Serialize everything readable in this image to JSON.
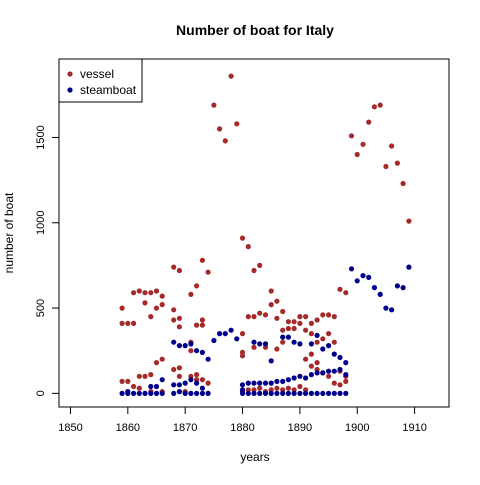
{
  "chart_data": {
    "type": "scatter",
    "title": "Number of boat for Italy",
    "xlabel": "years",
    "ylabel": "number of boat",
    "xlim": [
      1848,
      1916
    ],
    "ylim": [
      -80,
      1960
    ],
    "x_ticks": [
      "1850",
      "1860",
      "1870",
      "1880",
      "1890",
      "1900",
      "1910"
    ],
    "y_ticks": [
      "0",
      "500",
      "1000",
      "1500"
    ],
    "grid": false,
    "legend_position": "top-left",
    "series": [
      {
        "name": "vessel",
        "color": "#A52A2A",
        "points": [
          [
            1859,
            500
          ],
          [
            1859,
            410
          ],
          [
            1860,
            410
          ],
          [
            1861,
            410
          ],
          [
            1861,
            590
          ],
          [
            1862,
            600
          ],
          [
            1863,
            590
          ],
          [
            1863,
            530
          ],
          [
            1864,
            590
          ],
          [
            1864,
            450
          ],
          [
            1865,
            600
          ],
          [
            1865,
            500
          ],
          [
            1866,
            570
          ],
          [
            1866,
            520
          ],
          [
            1868,
            740
          ],
          [
            1868,
            490
          ],
          [
            1868,
            430
          ],
          [
            1869,
            720
          ],
          [
            1869,
            390
          ],
          [
            1869,
            440
          ],
          [
            1871,
            580
          ],
          [
            1871,
            300
          ],
          [
            1871,
            250
          ],
          [
            1872,
            630
          ],
          [
            1872,
            400
          ],
          [
            1873,
            780
          ],
          [
            1873,
            430
          ],
          [
            1873,
            400
          ],
          [
            1874,
            710
          ],
          [
            1875,
            1690
          ],
          [
            1876,
            1550
          ],
          [
            1877,
            1480
          ],
          [
            1878,
            1860
          ],
          [
            1879,
            1580
          ],
          [
            1880,
            910
          ],
          [
            1880,
            350
          ],
          [
            1880,
            240
          ],
          [
            1880,
            220
          ],
          [
            1881,
            860
          ],
          [
            1881,
            450
          ],
          [
            1882,
            720
          ],
          [
            1882,
            450
          ],
          [
            1882,
            270
          ],
          [
            1883,
            750
          ],
          [
            1883,
            470
          ],
          [
            1884,
            460
          ],
          [
            1884,
            270
          ],
          [
            1885,
            600
          ],
          [
            1885,
            520
          ],
          [
            1886,
            540
          ],
          [
            1886,
            440
          ],
          [
            1886,
            260
          ],
          [
            1887,
            480
          ],
          [
            1887,
            370
          ],
          [
            1887,
            300
          ],
          [
            1888,
            420
          ],
          [
            1888,
            380
          ],
          [
            1889,
            420
          ],
          [
            1889,
            380
          ],
          [
            1890,
            450
          ],
          [
            1890,
            410
          ],
          [
            1891,
            450
          ],
          [
            1891,
            370
          ],
          [
            1892,
            410
          ],
          [
            1892,
            350
          ],
          [
            1893,
            430
          ],
          [
            1893,
            300
          ],
          [
            1894,
            460
          ],
          [
            1894,
            320
          ],
          [
            1895,
            460
          ],
          [
            1895,
            350
          ],
          [
            1896,
            450
          ],
          [
            1896,
            300
          ],
          [
            1897,
            610
          ],
          [
            1898,
            590
          ],
          [
            1899,
            1510
          ],
          [
            1900,
            1400
          ],
          [
            1901,
            1460
          ],
          [
            1902,
            1590
          ],
          [
            1903,
            1680
          ],
          [
            1904,
            1690
          ],
          [
            1905,
            1330
          ],
          [
            1906,
            1450
          ],
          [
            1907,
            1350
          ],
          [
            1908,
            1230
          ],
          [
            1909,
            1010
          ],
          [
            1859,
            70
          ],
          [
            1860,
            70
          ],
          [
            1861,
            40
          ],
          [
            1862,
            30
          ],
          [
            1862,
            100
          ],
          [
            1863,
            100
          ],
          [
            1864,
            110
          ],
          [
            1864,
            10
          ],
          [
            1865,
            180
          ],
          [
            1866,
            200
          ],
          [
            1866,
            10
          ],
          [
            1868,
            140
          ],
          [
            1869,
            100
          ],
          [
            1869,
            150
          ],
          [
            1870,
            10
          ],
          [
            1871,
            100
          ],
          [
            1872,
            110
          ],
          [
            1872,
            80
          ],
          [
            1873,
            80
          ],
          [
            1874,
            60
          ],
          [
            1880,
            10
          ],
          [
            1881,
            20
          ],
          [
            1882,
            20
          ],
          [
            1883,
            30
          ],
          [
            1884,
            10
          ],
          [
            1885,
            20
          ],
          [
            1886,
            30
          ],
          [
            1887,
            20
          ],
          [
            1888,
            30
          ],
          [
            1889,
            20
          ],
          [
            1890,
            40
          ],
          [
            1891,
            20
          ],
          [
            1891,
            200
          ],
          [
            1892,
            230
          ],
          [
            1892,
            160
          ],
          [
            1893,
            180
          ],
          [
            1893,
            140
          ],
          [
            1894,
            120
          ],
          [
            1895,
            100
          ],
          [
            1896,
            60
          ],
          [
            1897,
            130
          ],
          [
            1897,
            50
          ],
          [
            1898,
            70
          ],
          [
            1898,
            100
          ]
        ]
      },
      {
        "name": "steamboat",
        "color": "#00008B",
        "points": [
          [
            1859,
            0
          ],
          [
            1860,
            0
          ],
          [
            1860,
            10
          ],
          [
            1861,
            0
          ],
          [
            1862,
            0
          ],
          [
            1863,
            0
          ],
          [
            1864,
            40
          ],
          [
            1864,
            0
          ],
          [
            1865,
            40
          ],
          [
            1865,
            0
          ],
          [
            1866,
            80
          ],
          [
            1866,
            0
          ],
          [
            1868,
            300
          ],
          [
            1868,
            50
          ],
          [
            1868,
            0
          ],
          [
            1869,
            280
          ],
          [
            1869,
            50
          ],
          [
            1869,
            10
          ],
          [
            1870,
            280
          ],
          [
            1870,
            60
          ],
          [
            1870,
            0
          ],
          [
            1871,
            290
          ],
          [
            1871,
            80
          ],
          [
            1871,
            0
          ],
          [
            1872,
            250
          ],
          [
            1872,
            60
          ],
          [
            1872,
            0
          ],
          [
            1873,
            240
          ],
          [
            1873,
            30
          ],
          [
            1873,
            0
          ],
          [
            1874,
            200
          ],
          [
            1874,
            0
          ],
          [
            1875,
            310
          ],
          [
            1876,
            350
          ],
          [
            1877,
            350
          ],
          [
            1878,
            370
          ],
          [
            1879,
            320
          ],
          [
            1880,
            50
          ],
          [
            1880,
            20
          ],
          [
            1880,
            0
          ],
          [
            1881,
            60
          ],
          [
            1881,
            0
          ],
          [
            1882,
            300
          ],
          [
            1882,
            60
          ],
          [
            1882,
            0
          ],
          [
            1883,
            290
          ],
          [
            1883,
            60
          ],
          [
            1883,
            0
          ],
          [
            1884,
            290
          ],
          [
            1884,
            60
          ],
          [
            1884,
            0
          ],
          [
            1885,
            190
          ],
          [
            1885,
            60
          ],
          [
            1885,
            0
          ],
          [
            1886,
            70
          ],
          [
            1886,
            0
          ],
          [
            1887,
            330
          ],
          [
            1887,
            70
          ],
          [
            1887,
            0
          ],
          [
            1888,
            330
          ],
          [
            1888,
            80
          ],
          [
            1888,
            0
          ],
          [
            1889,
            300
          ],
          [
            1889,
            90
          ],
          [
            1889,
            0
          ],
          [
            1890,
            290
          ],
          [
            1890,
            100
          ],
          [
            1890,
            0
          ],
          [
            1891,
            90
          ],
          [
            1891,
            0
          ],
          [
            1892,
            290
          ],
          [
            1892,
            110
          ],
          [
            1892,
            0
          ],
          [
            1893,
            340
          ],
          [
            1893,
            120
          ],
          [
            1893,
            0
          ],
          [
            1894,
            260
          ],
          [
            1894,
            120
          ],
          [
            1894,
            0
          ],
          [
            1895,
            280
          ],
          [
            1895,
            130
          ],
          [
            1895,
            0
          ],
          [
            1896,
            230
          ],
          [
            1896,
            130
          ],
          [
            1896,
            0
          ],
          [
            1897,
            210
          ],
          [
            1897,
            140
          ],
          [
            1897,
            0
          ],
          [
            1898,
            180
          ],
          [
            1898,
            110
          ],
          [
            1898,
            0
          ],
          [
            1899,
            730
          ],
          [
            1900,
            660
          ],
          [
            1901,
            690
          ],
          [
            1902,
            680
          ],
          [
            1903,
            620
          ],
          [
            1904,
            580
          ],
          [
            1905,
            500
          ],
          [
            1906,
            490
          ],
          [
            1907,
            630
          ],
          [
            1908,
            620
          ],
          [
            1909,
            740
          ]
        ]
      }
    ]
  }
}
